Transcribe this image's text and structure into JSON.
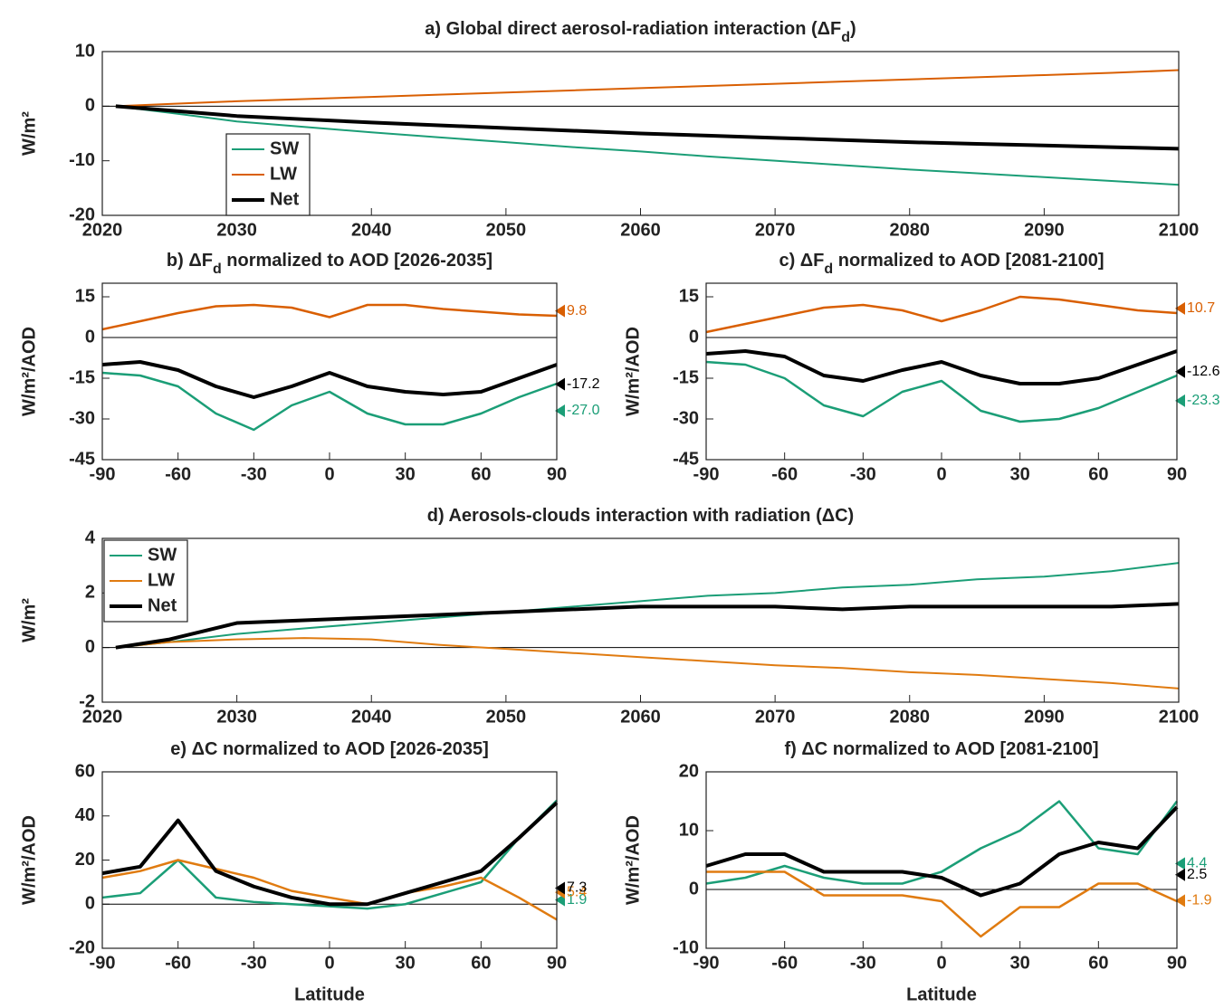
{
  "chart_data": [
    {
      "type": "line",
      "title": [
        "a) Global direct aerosol-radiation interaction (ΔF",
        "d",
        ")"
      ],
      "y_label": "W/m²",
      "x": [
        2021,
        2025,
        2030,
        2035,
        2040,
        2045,
        2050,
        2055,
        2060,
        2065,
        2070,
        2075,
        2080,
        2085,
        2090,
        2095,
        2100
      ],
      "xlim": [
        2020,
        2100
      ],
      "xticks": [
        2020,
        2030,
        2040,
        2050,
        2060,
        2070,
        2080,
        2090,
        2100
      ],
      "ylim": [
        -20,
        10
      ],
      "yticks": [
        -20,
        -10,
        0,
        10
      ],
      "legend": true,
      "series": [
        {
          "name": "SW",
          "color": "#1b9e77",
          "width": 2,
          "values": [
            0,
            -1.2,
            -2.8,
            -3.8,
            -4.8,
            -5.7,
            -6.6,
            -7.5,
            -8.3,
            -9.2,
            -10,
            -10.8,
            -11.6,
            -12.3,
            -13,
            -13.7,
            -14.4
          ]
        },
        {
          "name": "LW",
          "color": "#d95f02",
          "width": 2,
          "values": [
            0,
            0.4,
            0.9,
            1.3,
            1.7,
            2.1,
            2.5,
            2.9,
            3.3,
            3.7,
            4.1,
            4.5,
            4.9,
            5.3,
            5.7,
            6.1,
            6.6
          ]
        },
        {
          "name": "Net",
          "color": "#000000",
          "width": 4,
          "values": [
            0,
            -0.8,
            -1.8,
            -2.4,
            -3.0,
            -3.5,
            -4.0,
            -4.5,
            -5.0,
            -5.4,
            -5.8,
            -6.2,
            -6.6,
            -6.9,
            -7.2,
            -7.5,
            -7.8
          ]
        }
      ]
    },
    {
      "type": "line",
      "title": [
        "b) ΔF",
        "d",
        " normalized to AOD [2026-2035]"
      ],
      "y_label": "W/m²/AOD",
      "x": [
        -90,
        -75,
        -60,
        -45,
        -30,
        -15,
        0,
        15,
        30,
        45,
        60,
        75,
        90
      ],
      "xlim": [
        -90,
        90
      ],
      "xticks": [
        -90,
        -60,
        -30,
        0,
        30,
        60,
        90
      ],
      "ylim": [
        -45,
        20
      ],
      "yticks": [
        -45,
        -30,
        -15,
        0,
        15
      ],
      "legend": false,
      "series": [
        {
          "name": "SW",
          "color": "#1b9e77",
          "width": 2.5,
          "values": [
            -13,
            -14,
            -18,
            -28,
            -34,
            -25,
            -20,
            -28,
            -32,
            -32,
            -28,
            -22,
            -17
          ],
          "marker": {
            "value": -27,
            "label": "-27.0"
          }
        },
        {
          "name": "LW",
          "color": "#d95f02",
          "width": 2.5,
          "values": [
            3,
            6,
            9,
            11.5,
            12,
            11,
            7.5,
            12,
            12,
            10.5,
            9.5,
            8.5,
            8
          ],
          "marker": {
            "value": 9.8,
            "label": "9.8"
          }
        },
        {
          "name": "Net",
          "color": "#000000",
          "width": 4,
          "values": [
            -10,
            -9,
            -12,
            -18,
            -22,
            -18,
            -13,
            -18,
            -20,
            -21,
            -20,
            -15,
            -10
          ],
          "marker": {
            "value": -17.2,
            "label": "-17.2"
          }
        }
      ]
    },
    {
      "type": "line",
      "title": [
        "c) ΔF",
        "d",
        " normalized to AOD [2081-2100]"
      ],
      "y_label": "W/m²/AOD",
      "x": [
        -90,
        -75,
        -60,
        -45,
        -30,
        -15,
        0,
        15,
        30,
        45,
        60,
        75,
        90
      ],
      "xlim": [
        -90,
        90
      ],
      "xticks": [
        -90,
        -60,
        -30,
        0,
        30,
        60,
        90
      ],
      "ylim": [
        -45,
        20
      ],
      "yticks": [
        -45,
        -30,
        -15,
        0,
        15
      ],
      "legend": false,
      "series": [
        {
          "name": "SW",
          "color": "#1b9e77",
          "width": 2.5,
          "values": [
            -9,
            -10,
            -15,
            -25,
            -29,
            -20,
            -16,
            -27,
            -31,
            -30,
            -26,
            -20,
            -14
          ],
          "marker": {
            "value": -23.3,
            "label": "-23.3"
          }
        },
        {
          "name": "LW",
          "color": "#d95f02",
          "width": 2.5,
          "values": [
            2,
            5,
            8,
            11,
            12,
            10,
            6,
            10,
            15,
            14,
            12,
            10,
            9
          ],
          "marker": {
            "value": 10.7,
            "label": "10.7"
          }
        },
        {
          "name": "Net",
          "color": "#000000",
          "width": 4,
          "values": [
            -6,
            -5,
            -7,
            -14,
            -16,
            -12,
            -9,
            -14,
            -17,
            -17,
            -15,
            -10,
            -5
          ],
          "marker": {
            "value": -12.6,
            "label": "-12.6"
          }
        }
      ]
    },
    {
      "type": "line",
      "title": [
        "d) Aerosols-clouds interaction with radiation (ΔC)"
      ],
      "y_label": "W/m²",
      "x": [
        2021,
        2025,
        2030,
        2035,
        2040,
        2045,
        2050,
        2055,
        2060,
        2065,
        2070,
        2075,
        2080,
        2085,
        2090,
        2095,
        2100
      ],
      "xlim": [
        2020,
        2100
      ],
      "xticks": [
        2020,
        2030,
        2040,
        2050,
        2060,
        2070,
        2080,
        2090,
        2100
      ],
      "ylim": [
        -2,
        4
      ],
      "yticks": [
        -2,
        0,
        2,
        4
      ],
      "legend": true,
      "series": [
        {
          "name": "SW",
          "color": "#1b9e77",
          "width": 2,
          "values": [
            0,
            0.2,
            0.5,
            0.7,
            0.9,
            1.1,
            1.3,
            1.5,
            1.7,
            1.9,
            2.0,
            2.2,
            2.3,
            2.5,
            2.6,
            2.8,
            3.1
          ]
        },
        {
          "name": "LW",
          "color": "#e07b10",
          "width": 2,
          "values": [
            0,
            0.2,
            0.3,
            0.35,
            0.3,
            0.1,
            -0.05,
            -0.2,
            -0.35,
            -0.5,
            -0.65,
            -0.75,
            -0.9,
            -1.0,
            -1.15,
            -1.3,
            -1.5
          ]
        },
        {
          "name": "Net",
          "color": "#000000",
          "width": 4,
          "values": [
            0,
            0.3,
            0.9,
            1.0,
            1.1,
            1.2,
            1.3,
            1.4,
            1.5,
            1.5,
            1.5,
            1.4,
            1.5,
            1.5,
            1.5,
            1.5,
            1.6
          ]
        }
      ]
    },
    {
      "type": "line",
      "title": [
        "e) ΔC normalized to AOD [2026-2035]"
      ],
      "y_label": "W/m²/AOD",
      "x_label": "Latitude",
      "x": [
        -90,
        -75,
        -60,
        -45,
        -30,
        -15,
        0,
        15,
        30,
        45,
        60,
        75,
        90
      ],
      "xlim": [
        -90,
        90
      ],
      "xticks": [
        -90,
        -60,
        -30,
        0,
        30,
        60,
        90
      ],
      "ylim": [
        -20,
        60
      ],
      "yticks": [
        -20,
        0,
        20,
        40,
        60
      ],
      "legend": false,
      "series": [
        {
          "name": "SW",
          "color": "#1b9e77",
          "width": 2.5,
          "values": [
            3,
            5,
            20,
            3,
            1,
            0,
            -1,
            -2,
            0,
            5,
            10,
            30,
            47
          ],
          "marker": {
            "value": 1.9,
            "label": "1.9"
          }
        },
        {
          "name": "LW",
          "color": "#e07b10",
          "width": 2.5,
          "values": [
            12,
            15,
            20,
            16,
            12,
            6,
            3,
            0,
            5,
            8,
            12,
            3,
            -7
          ],
          "marker": {
            "value": 5.4,
            "label": "5.4"
          }
        },
        {
          "name": "Net",
          "color": "#000000",
          "width": 4,
          "values": [
            14,
            17,
            38,
            15,
            8,
            3,
            0,
            0,
            5,
            10,
            15,
            30,
            46
          ],
          "marker": {
            "value": 7.3,
            "label": "7.3"
          }
        }
      ]
    },
    {
      "type": "line",
      "title": [
        "f) ΔC normalized to AOD [2081-2100]"
      ],
      "y_label": "W/m²/AOD",
      "x_label": "Latitude",
      "x": [
        -90,
        -75,
        -60,
        -45,
        -30,
        -15,
        0,
        15,
        30,
        45,
        60,
        75,
        90
      ],
      "xlim": [
        -90,
        90
      ],
      "xticks": [
        -90,
        -60,
        -30,
        0,
        30,
        60,
        90
      ],
      "ylim": [
        -10,
        20
      ],
      "yticks": [
        -10,
        0,
        10,
        20
      ],
      "legend": false,
      "series": [
        {
          "name": "SW",
          "color": "#1b9e77",
          "width": 2.5,
          "values": [
            1,
            2,
            4,
            2,
            1,
            1,
            3,
            7,
            10,
            15,
            7,
            6,
            15
          ],
          "marker": {
            "value": 4.4,
            "label": "4.4"
          }
        },
        {
          "name": "LW",
          "color": "#e07b10",
          "width": 2.5,
          "values": [
            3,
            3,
            3,
            -1,
            -1,
            -1,
            -2,
            -8,
            -3,
            -3,
            1,
            1,
            -2
          ],
          "marker": {
            "value": -1.9,
            "label": "-1.9"
          }
        },
        {
          "name": "Net",
          "color": "#000000",
          "width": 4,
          "values": [
            4,
            6,
            6,
            3,
            3,
            3,
            2,
            -1,
            1,
            6,
            8,
            7,
            14
          ],
          "marker": {
            "value": 2.5,
            "label": "2.5"
          }
        }
      ]
    }
  ]
}
